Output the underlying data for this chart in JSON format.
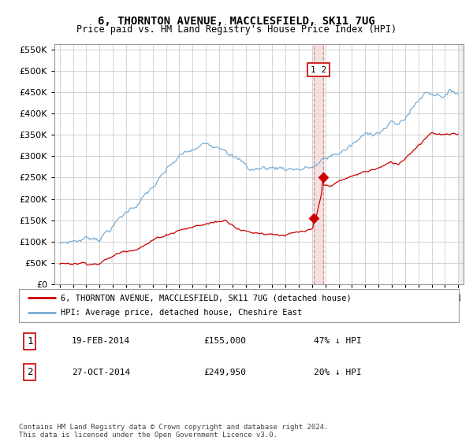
{
  "title": "6, THORNTON AVENUE, MACCLESFIELD, SK11 7UG",
  "subtitle": "Price paid vs. HM Land Registry's House Price Index (HPI)",
  "red_label": "6, THORNTON AVENUE, MACCLESFIELD, SK11 7UG (detached house)",
  "blue_label": "HPI: Average price, detached house, Cheshire East",
  "footnote": "Contains HM Land Registry data © Crown copyright and database right 2024.\nThis data is licensed under the Open Government Licence v3.0.",
  "transaction1_label": "19-FEB-2014",
  "transaction1_price": "£155,000",
  "transaction1_hpi": "47% ↓ HPI",
  "transaction2_label": "27-OCT-2014",
  "transaction2_price": "£249,950",
  "transaction2_hpi": "20% ↓ HPI",
  "ylim": [
    0,
    562000
  ],
  "yticks": [
    0,
    50000,
    100000,
    150000,
    200000,
    250000,
    300000,
    350000,
    400000,
    450000,
    500000,
    550000
  ],
  "xlim_start": 1994.6,
  "xlim_end": 2025.4,
  "red_color": "#cc0000",
  "blue_color": "#7aadd4",
  "bg_color": "#ffffff",
  "grid_color": "#cccccc",
  "vline_color": "#dd8888",
  "vband_color": "#e8d0d0",
  "sale1_x": 2014.13,
  "sale2_x": 2014.82,
  "sale1_y_red": 155000,
  "sale1_y_blue": 293000,
  "sale2_y_red": 249950,
  "sale2_y_blue": 307000
}
